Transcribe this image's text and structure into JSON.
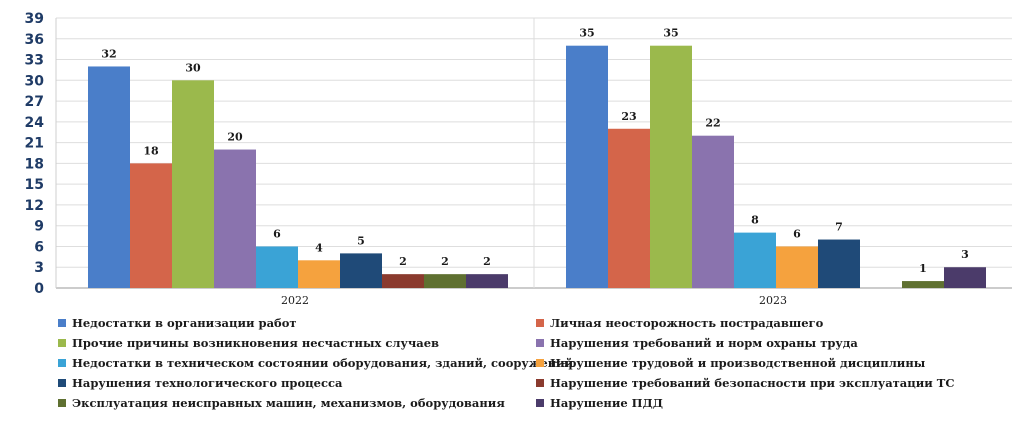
{
  "chart_data": {
    "type": "bar",
    "categories": [
      "2022",
      "2023"
    ],
    "ylim": [
      0,
      39
    ],
    "yticks": [
      0,
      3,
      6,
      9,
      12,
      15,
      18,
      21,
      24,
      27,
      30,
      33,
      36,
      39
    ],
    "grid": true,
    "legend_position": "bottom",
    "series": [
      {
        "name": "Недостатки в организации работ",
        "color": "#4a7ec9",
        "values": [
          32,
          35
        ]
      },
      {
        "name": "Личная неосторожность пострадавшего",
        "color": "#d4654a",
        "values": [
          18,
          23
        ]
      },
      {
        "name": "Прочие причины возникновения несчастных случаев",
        "color": "#9bb94c",
        "values": [
          30,
          35
        ]
      },
      {
        "name": "Нарушения требований и норм охраны труда",
        "color": "#8a73ae",
        "values": [
          20,
          22
        ]
      },
      {
        "name": "Недостатки в техническом состоянии оборудования, зданий, сооружений",
        "color": "#3aa3d6",
        "values": [
          6,
          8
        ]
      },
      {
        "name": "Нарушение трудовой и производственной дисциплины",
        "color": "#f5a23e",
        "values": [
          4,
          6
        ]
      },
      {
        "name": "Нарушения технологического процесса",
        "color": "#1f4a78",
        "values": [
          5,
          7
        ]
      },
      {
        "name": "Нарушение требований безопасности при эксплуатации ТС",
        "color": "#8a3a2e",
        "values": [
          2,
          null
        ]
      },
      {
        "name": "Эксплуатация неисправных машин, механизмов, оборудования",
        "color": "#5f7031",
        "values": [
          2,
          1
        ]
      },
      {
        "name": "Нарушение ПДД",
        "color": "#4b3b6a",
        "values": [
          2,
          3
        ]
      }
    ]
  }
}
